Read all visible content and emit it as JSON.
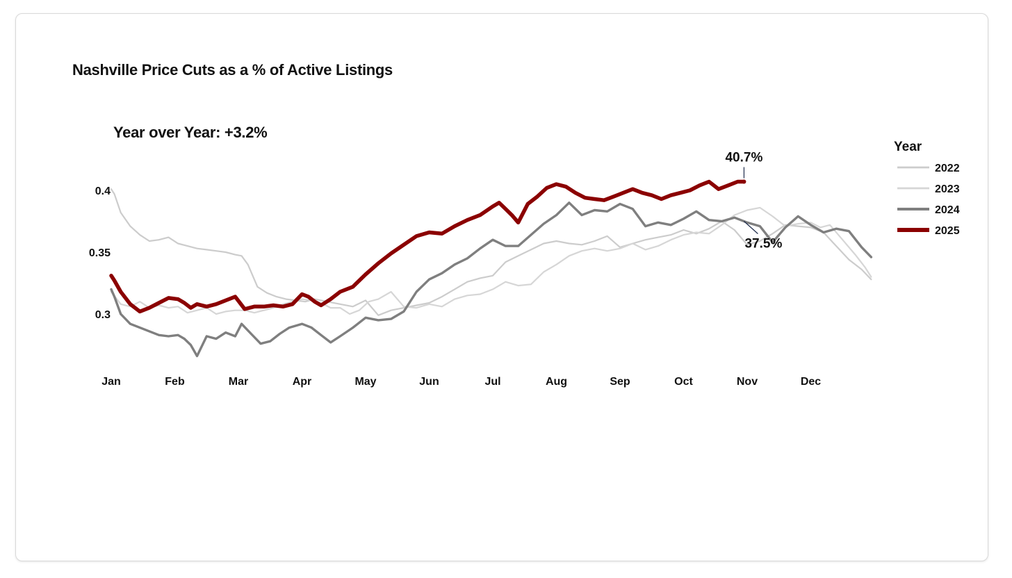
{
  "chart_data": {
    "type": "line",
    "title": "Nashville Price Cuts as a % of Active Listings",
    "subtitle": "Year over Year: +3.2%",
    "xlabel": "",
    "ylabel": "",
    "x_tick_labels": [
      "Jan",
      "Feb",
      "Mar",
      "Apr",
      "May",
      "Jun",
      "Jul",
      "Aug",
      "Sep",
      "Oct",
      "Nov",
      "Dec"
    ],
    "y_ticks": [
      0.3,
      0.35,
      0.4
    ],
    "y_tick_labels": [
      "0.3",
      "0.35",
      "0.4"
    ],
    "xlim": [
      0,
      12
    ],
    "ylim": [
      0.26,
      0.43
    ],
    "grid": false,
    "legend": {
      "title": "Year",
      "position": "right"
    },
    "x_unit": "month index (0 = start of Jan)",
    "series": [
      {
        "name": "2022",
        "color": "#cccccc",
        "width": 2.2,
        "x": [
          0,
          0.05,
          0.15,
          0.3,
          0.45,
          0.6,
          0.75,
          0.9,
          1.05,
          1.2,
          1.35,
          1.5,
          1.65,
          1.8,
          1.95,
          2.05,
          2.15,
          2.3,
          2.45,
          2.6,
          2.75,
          2.9,
          3.05,
          3.2,
          3.4,
          3.6,
          3.8,
          4.0,
          4.2,
          4.4,
          4.6,
          4.8,
          5.0,
          5.2,
          5.4,
          5.6,
          5.8,
          6.0,
          6.2,
          6.4,
          6.6,
          6.8,
          7.0,
          7.2,
          7.4,
          7.6,
          7.8,
          8.0,
          8.2,
          8.4,
          8.6,
          8.8,
          9.0,
          9.2,
          9.4,
          9.6,
          9.8,
          10.0,
          10.2,
          10.4,
          10.6,
          10.8,
          11.0,
          11.2,
          11.4,
          11.6,
          11.8,
          11.95
        ],
        "values": [
          0.401,
          0.397,
          0.382,
          0.371,
          0.364,
          0.359,
          0.36,
          0.362,
          0.357,
          0.355,
          0.353,
          0.352,
          0.351,
          0.35,
          0.348,
          0.347,
          0.34,
          0.322,
          0.317,
          0.314,
          0.312,
          0.311,
          0.31,
          0.312,
          0.31,
          0.308,
          0.306,
          0.311,
          0.299,
          0.303,
          0.305,
          0.307,
          0.309,
          0.314,
          0.32,
          0.326,
          0.329,
          0.331,
          0.342,
          0.347,
          0.352,
          0.357,
          0.359,
          0.357,
          0.356,
          0.359,
          0.363,
          0.354,
          0.357,
          0.36,
          0.362,
          0.364,
          0.368,
          0.365,
          0.369,
          0.375,
          0.368,
          0.356,
          0.359,
          0.365,
          0.372,
          0.371,
          0.37,
          0.366,
          0.355,
          0.344,
          0.336,
          0.328
        ]
      },
      {
        "name": "2023",
        "color": "#d6d6d6",
        "width": 2.2,
        "x": [
          0,
          0.15,
          0.3,
          0.45,
          0.6,
          0.75,
          0.9,
          1.05,
          1.2,
          1.35,
          1.5,
          1.65,
          1.8,
          1.95,
          2.1,
          2.25,
          2.4,
          2.55,
          2.7,
          2.85,
          3.0,
          3.15,
          3.3,
          3.45,
          3.6,
          3.75,
          3.9,
          4.05,
          4.2,
          4.4,
          4.6,
          4.8,
          5.0,
          5.2,
          5.4,
          5.6,
          5.8,
          6.0,
          6.2,
          6.4,
          6.6,
          6.8,
          7.0,
          7.2,
          7.4,
          7.6,
          7.8,
          8.0,
          8.2,
          8.4,
          8.6,
          8.8,
          9.0,
          9.2,
          9.4,
          9.6,
          9.8,
          10.0,
          10.2,
          10.4,
          10.6,
          10.8,
          11.0,
          11.15,
          11.3,
          11.5,
          11.7,
          11.85,
          11.95
        ],
        "values": [
          0.318,
          0.308,
          0.306,
          0.31,
          0.305,
          0.307,
          0.305,
          0.306,
          0.301,
          0.303,
          0.305,
          0.3,
          0.302,
          0.303,
          0.303,
          0.301,
          0.303,
          0.305,
          0.308,
          0.31,
          0.312,
          0.311,
          0.309,
          0.305,
          0.305,
          0.3,
          0.303,
          0.31,
          0.312,
          0.318,
          0.306,
          0.305,
          0.308,
          0.306,
          0.312,
          0.315,
          0.316,
          0.32,
          0.326,
          0.323,
          0.324,
          0.334,
          0.34,
          0.347,
          0.351,
          0.353,
          0.351,
          0.353,
          0.357,
          0.352,
          0.355,
          0.36,
          0.364,
          0.366,
          0.365,
          0.372,
          0.38,
          0.384,
          0.386,
          0.379,
          0.371,
          0.373,
          0.374,
          0.37,
          0.372,
          0.36,
          0.348,
          0.338,
          0.33
        ]
      },
      {
        "name": "2024",
        "color": "#7f7f7f",
        "width": 3.4,
        "x": [
          0,
          0.05,
          0.15,
          0.3,
          0.45,
          0.6,
          0.75,
          0.9,
          1.05,
          1.15,
          1.25,
          1.35,
          1.5,
          1.65,
          1.8,
          1.95,
          2.05,
          2.2,
          2.35,
          2.5,
          2.65,
          2.8,
          3.0,
          3.15,
          3.3,
          3.45,
          3.6,
          3.8,
          4.0,
          4.2,
          4.4,
          4.6,
          4.8,
          5.0,
          5.2,
          5.4,
          5.6,
          5.8,
          6.0,
          6.2,
          6.4,
          6.6,
          6.8,
          7.0,
          7.2,
          7.4,
          7.6,
          7.8,
          8.0,
          8.2,
          8.4,
          8.6,
          8.8,
          9.0,
          9.2,
          9.4,
          9.6,
          9.8,
          10.0,
          10.2,
          10.4,
          10.6,
          10.8,
          11.0,
          11.2,
          11.4,
          11.6,
          11.8,
          11.95
        ],
        "values": [
          0.32,
          0.314,
          0.3,
          0.292,
          0.289,
          0.286,
          0.283,
          0.282,
          0.283,
          0.28,
          0.275,
          0.266,
          0.282,
          0.28,
          0.285,
          0.282,
          0.292,
          0.284,
          0.276,
          0.278,
          0.284,
          0.289,
          0.292,
          0.289,
          0.283,
          0.277,
          0.282,
          0.289,
          0.297,
          0.295,
          0.296,
          0.302,
          0.318,
          0.328,
          0.333,
          0.34,
          0.345,
          0.353,
          0.36,
          0.355,
          0.355,
          0.364,
          0.373,
          0.38,
          0.39,
          0.38,
          0.384,
          0.383,
          0.389,
          0.385,
          0.371,
          0.374,
          0.372,
          0.377,
          0.383,
          0.376,
          0.375,
          0.378,
          0.374,
          0.371,
          0.358,
          0.37,
          0.379,
          0.372,
          0.366,
          0.369,
          0.367,
          0.354,
          0.346
        ]
      },
      {
        "name": "2025",
        "color": "#8b0000",
        "width": 5.5,
        "x": [
          0,
          0.05,
          0.15,
          0.3,
          0.45,
          0.6,
          0.75,
          0.9,
          1.05,
          1.15,
          1.25,
          1.35,
          1.5,
          1.65,
          1.8,
          1.95,
          2.1,
          2.25,
          2.4,
          2.55,
          2.7,
          2.85,
          3.0,
          3.1,
          3.2,
          3.3,
          3.45,
          3.6,
          3.8,
          4.0,
          4.2,
          4.4,
          4.6,
          4.8,
          5.0,
          5.2,
          5.4,
          5.6,
          5.8,
          6.0,
          6.1,
          6.2,
          6.3,
          6.4,
          6.55,
          6.7,
          6.85,
          7.0,
          7.15,
          7.3,
          7.45,
          7.6,
          7.75,
          7.9,
          8.05,
          8.2,
          8.35,
          8.5,
          8.65,
          8.8,
          8.95,
          9.1,
          9.25,
          9.4,
          9.55,
          9.7,
          9.85,
          9.95
        ],
        "values": [
          0.331,
          0.327,
          0.318,
          0.308,
          0.302,
          0.305,
          0.309,
          0.313,
          0.312,
          0.309,
          0.305,
          0.308,
          0.306,
          0.308,
          0.311,
          0.314,
          0.304,
          0.306,
          0.306,
          0.307,
          0.306,
          0.308,
          0.316,
          0.314,
          0.31,
          0.307,
          0.312,
          0.318,
          0.322,
          0.332,
          0.341,
          0.349,
          0.356,
          0.363,
          0.366,
          0.365,
          0.371,
          0.376,
          0.38,
          0.387,
          0.39,
          0.385,
          0.38,
          0.374,
          0.389,
          0.395,
          0.402,
          0.405,
          0.403,
          0.398,
          0.394,
          0.393,
          0.392,
          0.395,
          0.398,
          0.401,
          0.398,
          0.396,
          0.393,
          0.396,
          0.398,
          0.4,
          0.404,
          0.407,
          0.401,
          0.404,
          0.407,
          0.407
        ]
      }
    ],
    "annotations": [
      {
        "label": "40.7%",
        "series": "2025",
        "x": 9.95,
        "value": 0.407
      },
      {
        "label": "37.5%",
        "series": "2024",
        "x": 9.95,
        "value": 0.375
      }
    ]
  }
}
